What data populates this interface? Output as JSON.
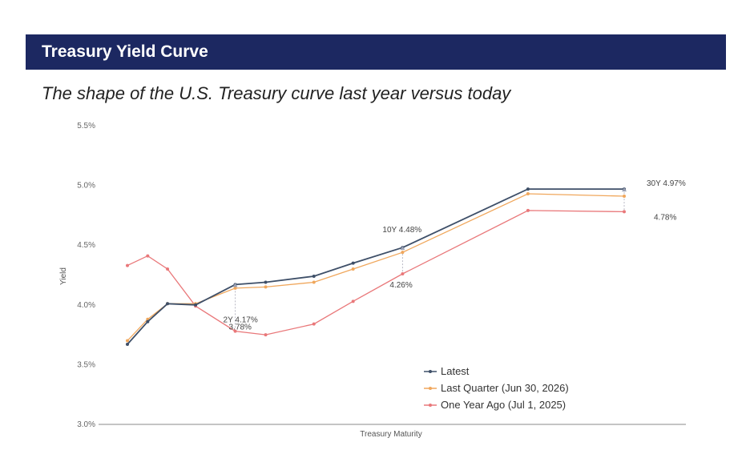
{
  "header": {
    "title": "Treasury Yield Curve"
  },
  "subtitle": "The shape of the U.S. Treasury curve last year versus today",
  "chart_data": {
    "type": "line",
    "xlabel": "Treasury Maturity",
    "ylabel": "Yield",
    "ylim": [
      3.0,
      5.5
    ],
    "y_ticks": [
      "3.0%",
      "3.5%",
      "4.0%",
      "4.5%",
      "5.0%",
      "5.5%"
    ],
    "y_tick_values": [
      3.0,
      3.5,
      4.0,
      4.5,
      5.0,
      5.5
    ],
    "x_tick_labels_shown": false,
    "grid": false,
    "legend_position": "bottom-right",
    "x": [
      0.083,
      0.25,
      0.5,
      1,
      2,
      3,
      5,
      7,
      10,
      20,
      30
    ],
    "series": [
      {
        "name": "Latest",
        "color": "#3e4f68",
        "values": [
          3.67,
          3.86,
          4.01,
          4.0,
          4.17,
          4.19,
          4.24,
          4.35,
          4.48,
          4.97,
          4.97
        ]
      },
      {
        "name": "Last Quarter (Jun 30, 2026)",
        "color": "#f0a75c",
        "values": [
          3.7,
          3.88,
          4.01,
          4.01,
          4.14,
          4.15,
          4.19,
          4.3,
          4.44,
          4.93,
          4.91
        ]
      },
      {
        "name": "One Year Ago (Jul 1, 2025)",
        "color": "#e9787a",
        "values": [
          4.33,
          4.41,
          4.3,
          3.99,
          3.78,
          3.75,
          3.84,
          4.03,
          4.26,
          4.79,
          4.78
        ]
      }
    ],
    "annotations": [
      {
        "text": "2Y 4.17%",
        "series": 0,
        "point": 4
      },
      {
        "text": "3.78%",
        "series": 2,
        "point": 4
      },
      {
        "text": "10Y 4.48%",
        "series": 0,
        "point": 8
      },
      {
        "text": "4.26%",
        "series": 2,
        "point": 8
      },
      {
        "text": "30Y 4.97%",
        "series": 0,
        "point": 10
      },
      {
        "text": "4.78%",
        "series": 2,
        "point": 10
      }
    ]
  }
}
